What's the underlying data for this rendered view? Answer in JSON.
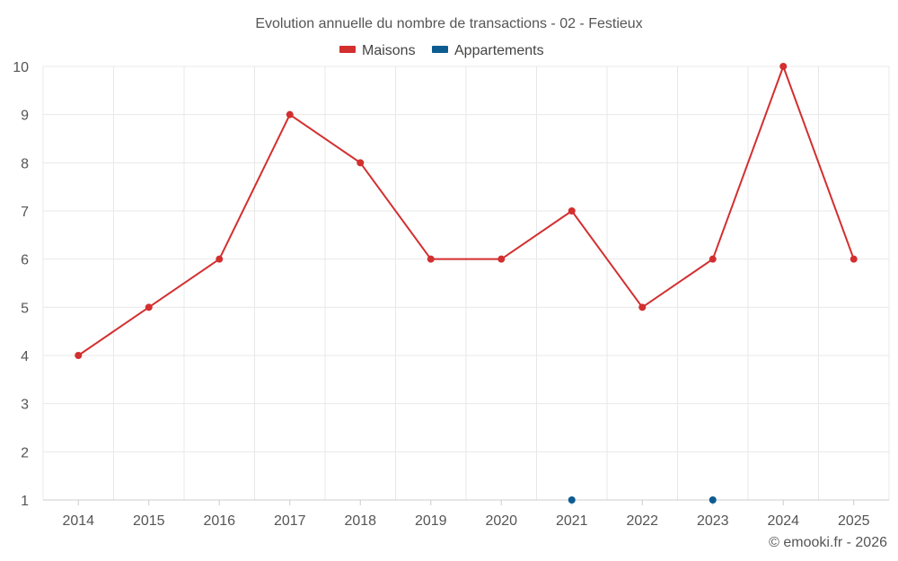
{
  "colors": {
    "maisons": "#d32f2f",
    "appartements": "#0d5c91"
  },
  "chart_data": {
    "type": "line",
    "title": "Evolution annuelle du nombre de transactions - 02 - Festieux",
    "categories": [
      "2014",
      "2015",
      "2016",
      "2017",
      "2018",
      "2019",
      "2020",
      "2021",
      "2022",
      "2023",
      "2024",
      "2025"
    ],
    "series": [
      {
        "name": "Maisons",
        "color": "#d32f2f",
        "values": [
          4,
          5,
          6,
          9,
          8,
          6,
          6,
          7,
          5,
          6,
          10,
          6
        ]
      },
      {
        "name": "Appartements",
        "color": "#0d5c91",
        "values": [
          null,
          null,
          null,
          null,
          null,
          null,
          null,
          1,
          null,
          1,
          null,
          null
        ]
      }
    ],
    "ylim": [
      1,
      10
    ],
    "yticks": [
      "1",
      "2",
      "3",
      "4",
      "5",
      "6",
      "7",
      "8",
      "9",
      "10"
    ],
    "xlabel": "",
    "ylabel": "",
    "grid": true,
    "legend_position": "top-center"
  },
  "credit": "© emooki.fr - 2026"
}
